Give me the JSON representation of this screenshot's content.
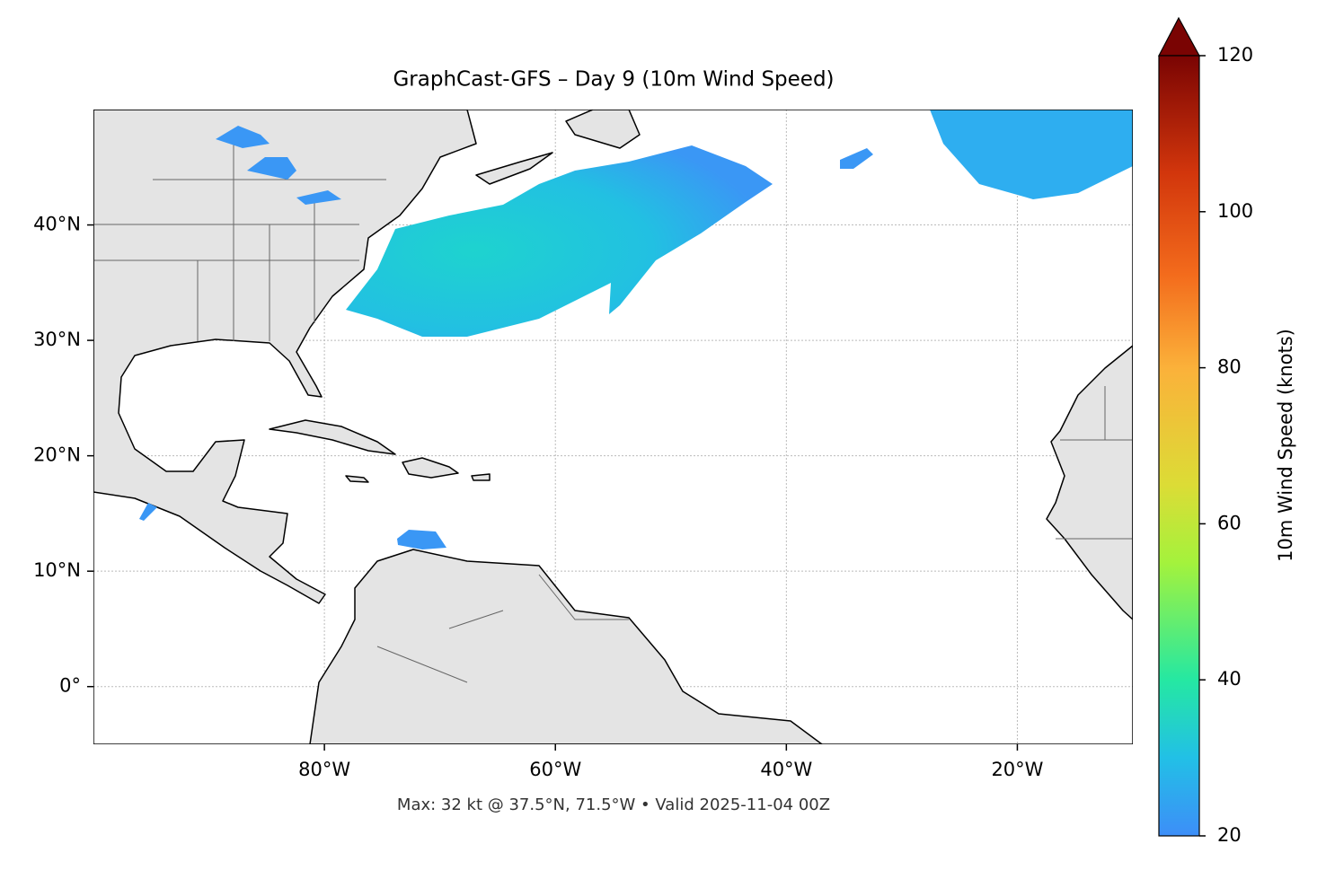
{
  "chart_data": {
    "type": "map",
    "title": "GraphCast-GFS – Day 9 (10m Wind Speed)",
    "footer": "Max: 32 kt @ 37.5°N, 71.5°W • Valid 2025-11-04 00Z",
    "xlim": [
      -100,
      -10
    ],
    "ylim": [
      -5,
      50
    ],
    "xticks": [
      {
        "value": -80,
        "label": "80°W"
      },
      {
        "value": -60,
        "label": "60°W"
      },
      {
        "value": -40,
        "label": "40°W"
      },
      {
        "value": -20,
        "label": "20°W"
      }
    ],
    "yticks": [
      {
        "value": 0,
        "label": "0°"
      },
      {
        "value": 10,
        "label": "10°N"
      },
      {
        "value": 20,
        "label": "20°N"
      },
      {
        "value": 30,
        "label": "30°N"
      },
      {
        "value": 40,
        "label": "40°N"
      }
    ],
    "grid": true,
    "colorbar": {
      "label": "10m Wind Speed (knots)",
      "lim": [
        20,
        120
      ],
      "ticks": [
        20,
        40,
        60,
        80,
        100,
        120
      ]
    }
  }
}
